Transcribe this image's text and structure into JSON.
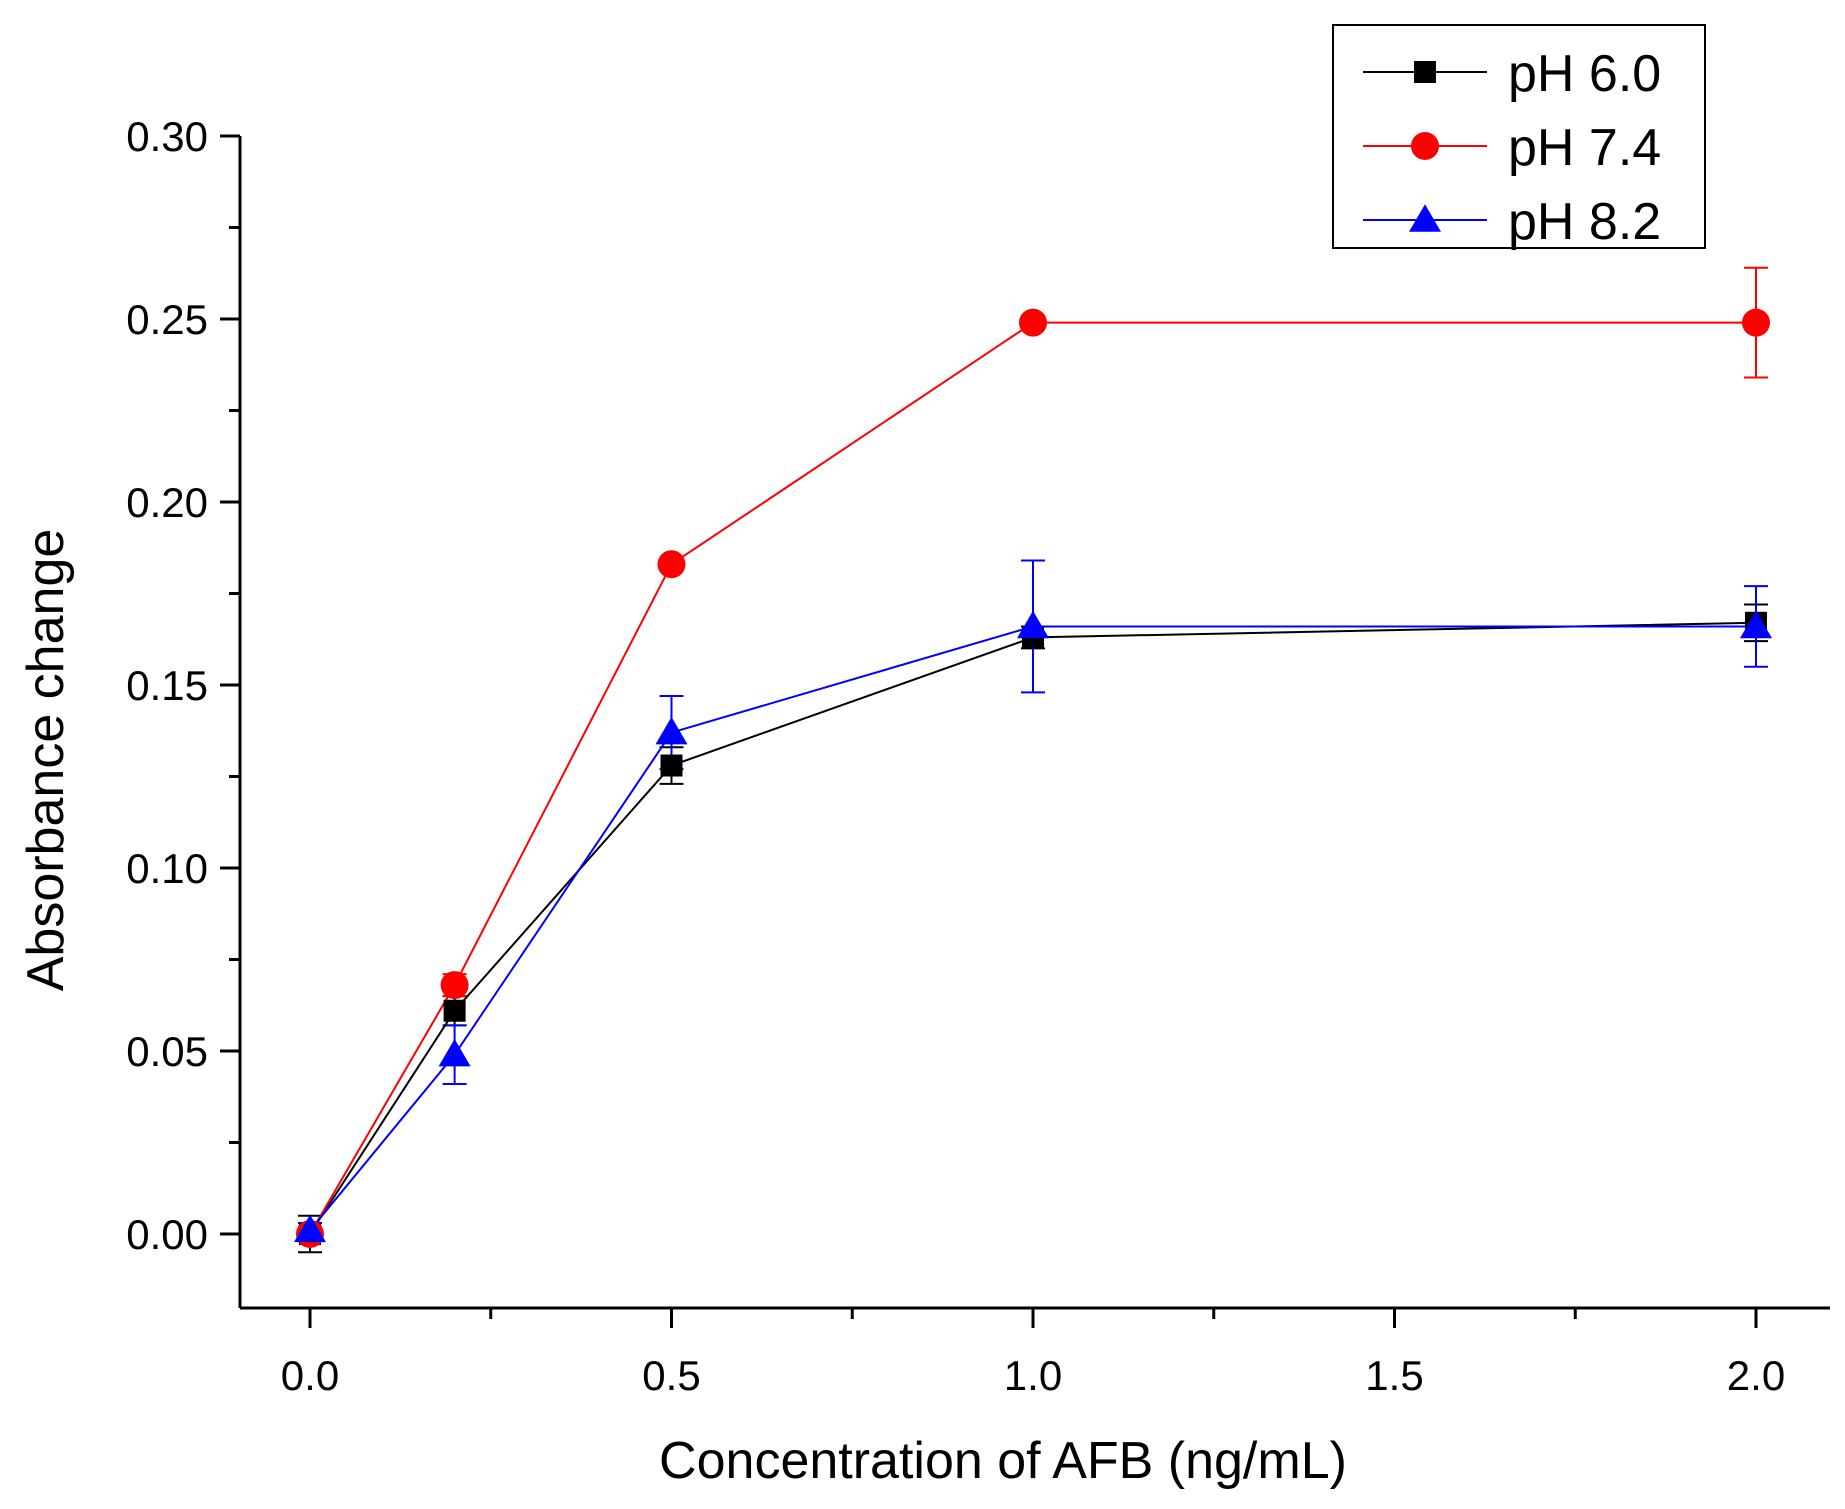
{
  "chart_data": {
    "type": "line",
    "xlabel": "Concentration of AFB (ng/mL)",
    "ylabel": "Absorbance change",
    "xlim": [
      -0.1,
      2.1
    ],
    "ylim": [
      -0.02,
      0.3
    ],
    "x_ticks": [
      0.0,
      0.5,
      1.0,
      1.5,
      2.0
    ],
    "x_tick_labels": [
      "0.0",
      "0.5",
      "1.0",
      "1.5",
      "2.0"
    ],
    "y_ticks": [
      0.0,
      0.05,
      0.1,
      0.15,
      0.2,
      0.25,
      0.3
    ],
    "y_tick_labels": [
      "0.00",
      "0.05",
      "0.10",
      "0.15",
      "0.20",
      "0.25",
      "0.30"
    ],
    "legend_position": "top-right",
    "series": [
      {
        "name": "pH 6.0",
        "color": "#000000",
        "marker": "square",
        "x": [
          0.0,
          0.2,
          0.5,
          1.0,
          2.0
        ],
        "y": [
          0.0,
          0.061,
          0.128,
          0.163,
          0.167
        ],
        "err": [
          0.005,
          0.004,
          0.005,
          0.003,
          0.005
        ]
      },
      {
        "name": "pH 7.4",
        "color": "#ff0000",
        "marker": "circle",
        "x": [
          0.0,
          0.2,
          0.5,
          1.0,
          2.0
        ],
        "y": [
          0.0,
          0.068,
          0.183,
          0.249,
          0.249
        ],
        "err": [
          0.002,
          0.003,
          0.0,
          0.0,
          0.015
        ]
      },
      {
        "name": "pH 8.2",
        "color": "#0000ff",
        "marker": "triangle",
        "x": [
          0.0,
          0.2,
          0.5,
          1.0,
          2.0
        ],
        "y": [
          0.001,
          0.049,
          0.137,
          0.166,
          0.166
        ],
        "err": [
          0.002,
          0.008,
          0.01,
          0.018,
          0.011
        ]
      }
    ]
  }
}
